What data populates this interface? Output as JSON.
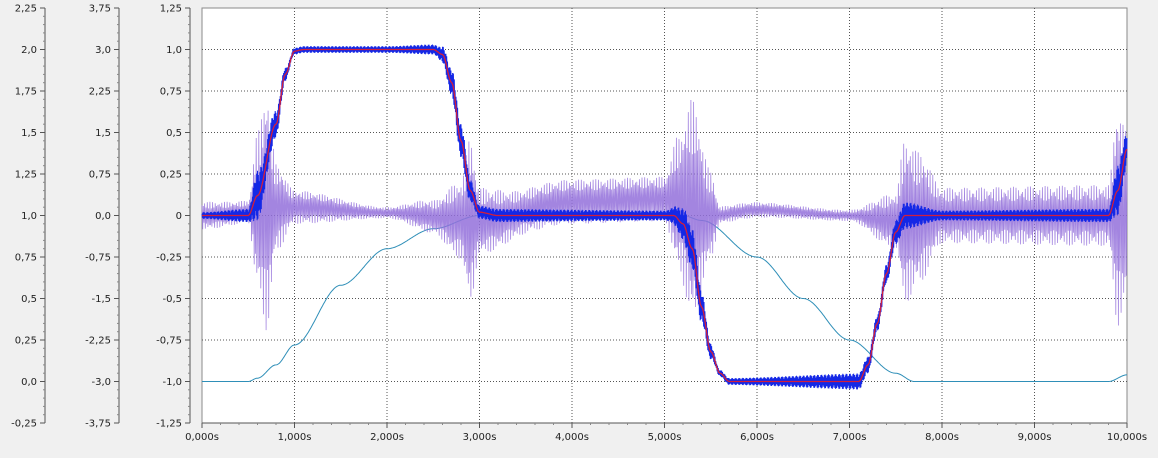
{
  "chart_data": {
    "type": "line",
    "x": {
      "unit": "s",
      "range": [
        0,
        10
      ],
      "tick_labels": [
        "0,000s",
        "1,000s",
        "2,000s",
        "3,000s",
        "4,000s",
        "5,000s",
        "6,000s",
        "7,000s",
        "8,000s",
        "9,000s",
        "10,000s"
      ]
    },
    "y_axes": [
      {
        "id": "axis1",
        "range": [
          -0.25,
          2.25
        ],
        "tick_labels": [
          "2,25",
          "2,0",
          "1,75",
          "1,5",
          "1,25",
          "1,0",
          "0,75",
          "0,5",
          "0,25",
          "0,0",
          "-0,25"
        ]
      },
      {
        "id": "axis2",
        "range": [
          -3.75,
          3.75
        ],
        "tick_labels": [
          "3,75",
          "3,0",
          "2,25",
          "1,5",
          "0,75",
          "0,0",
          "-0,75",
          "-1,5",
          "-2,25",
          "-3,0",
          "-3,75"
        ]
      },
      {
        "id": "axis3",
        "range": [
          -1.25,
          1.25
        ],
        "tick_labels": [
          "1,25",
          "1,0",
          "0,75",
          "0,5",
          "0,25",
          "0",
          "-0,25",
          "-0,5",
          "-0,75",
          "-1,0",
          "-1,25"
        ]
      }
    ],
    "grid": true,
    "legend": "none",
    "series": [
      {
        "color": "#2f8fb8",
        "axis": "axis1",
        "points": [
          [
            0,
            0
          ],
          [
            0.5,
            0
          ],
          [
            0.6,
            0.02
          ],
          [
            0.8,
            0.1
          ],
          [
            1.0,
            0.22
          ],
          [
            1.5,
            0.58
          ],
          [
            2.0,
            0.8
          ],
          [
            2.5,
            0.92
          ],
          [
            3.0,
            1.0
          ],
          [
            5.2,
            1.0
          ],
          [
            5.4,
            0.97
          ],
          [
            6.0,
            0.75
          ],
          [
            6.5,
            0.5
          ],
          [
            7.0,
            0.25
          ],
          [
            7.5,
            0.05
          ],
          [
            7.7,
            0.0
          ],
          [
            9.8,
            0.0
          ],
          [
            10.0,
            0.04
          ]
        ]
      },
      {
        "color": "#9370db",
        "axis": "axis2",
        "baseline": [
          [
            0,
            0
          ],
          [
            1,
            0.15
          ],
          [
            2,
            0.05
          ],
          [
            3,
            -0.1
          ],
          [
            4,
            0.25
          ],
          [
            5,
            0.3
          ],
          [
            5.5,
            0
          ],
          [
            6,
            0.1
          ],
          [
            7,
            0
          ],
          [
            7.5,
            -0.1
          ],
          [
            8,
            0
          ],
          [
            10,
            0
          ]
        ],
        "oscillation_amplitude": [
          [
            0,
            0.25
          ],
          [
            0.5,
            0.2
          ],
          [
            0.6,
            1.4
          ],
          [
            0.7,
            2.2
          ],
          [
            0.8,
            0.8
          ],
          [
            1.0,
            0.3
          ],
          [
            2.0,
            0.1
          ],
          [
            2.5,
            0.3
          ],
          [
            2.8,
            0.7
          ],
          [
            2.9,
            1.5
          ],
          [
            3.0,
            0.6
          ],
          [
            3.5,
            0.4
          ],
          [
            5.0,
            0.4
          ],
          [
            5.15,
            1.2
          ],
          [
            5.3,
            2.0
          ],
          [
            5.5,
            0.8
          ],
          [
            5.6,
            0.15
          ],
          [
            7.0,
            0.1
          ],
          [
            7.5,
            0.5
          ],
          [
            7.6,
            1.5
          ],
          [
            7.75,
            1.2
          ],
          [
            8.0,
            0.5
          ],
          [
            9.8,
            0.55
          ],
          [
            9.9,
            2.0
          ],
          [
            10.0,
            1.5
          ]
        ]
      },
      {
        "color": "#1428e6",
        "axis": "axis3",
        "points": [
          [
            0,
            0
          ],
          [
            0.5,
            0
          ],
          [
            0.6,
            0.12
          ],
          [
            0.8,
            0.55
          ],
          [
            0.9,
            0.85
          ],
          [
            1.0,
            0.99
          ],
          [
            1.1,
            1.0
          ],
          [
            2.5,
            1.0
          ],
          [
            2.6,
            0.97
          ],
          [
            2.7,
            0.8
          ],
          [
            2.8,
            0.45
          ],
          [
            2.9,
            0.15
          ],
          [
            3.0,
            0.02
          ],
          [
            3.2,
            0
          ],
          [
            5.1,
            0
          ],
          [
            5.2,
            -0.05
          ],
          [
            5.3,
            -0.2
          ],
          [
            5.4,
            -0.55
          ],
          [
            5.5,
            -0.82
          ],
          [
            5.6,
            -0.95
          ],
          [
            5.7,
            -1.0
          ],
          [
            7.1,
            -1.0
          ],
          [
            7.2,
            -0.9
          ],
          [
            7.3,
            -0.65
          ],
          [
            7.4,
            -0.35
          ],
          [
            7.5,
            -0.1
          ],
          [
            7.6,
            0
          ],
          [
            7.8,
            0.0
          ],
          [
            9.8,
            0.0
          ],
          [
            9.9,
            0.15
          ],
          [
            10.0,
            0.4
          ]
        ],
        "noise_amplitude": [
          [
            0,
            0.02
          ],
          [
            0.5,
            0.04
          ],
          [
            0.6,
            0.15
          ],
          [
            0.7,
            0.1
          ],
          [
            1.0,
            0.02
          ],
          [
            2.0,
            0.02
          ],
          [
            2.5,
            0.03
          ],
          [
            2.8,
            0.1
          ],
          [
            3.0,
            0.04
          ],
          [
            5.0,
            0.03
          ],
          [
            5.3,
            0.12
          ],
          [
            5.6,
            0.02
          ],
          [
            7.3,
            0.05
          ],
          [
            7.6,
            0.08
          ],
          [
            8.0,
            0.03
          ],
          [
            9.8,
            0.04
          ],
          [
            9.9,
            0.15
          ],
          [
            10.0,
            0.1
          ]
        ]
      },
      {
        "color": "#d21e3c",
        "axis": "axis3",
        "points": [
          [
            0,
            0
          ],
          [
            0.5,
            0
          ],
          [
            0.6,
            0.12
          ],
          [
            0.8,
            0.55
          ],
          [
            0.9,
            0.85
          ],
          [
            1.0,
            0.99
          ],
          [
            1.1,
            1.0
          ],
          [
            2.5,
            1.0
          ],
          [
            2.6,
            0.97
          ],
          [
            2.7,
            0.8
          ],
          [
            2.8,
            0.45
          ],
          [
            2.9,
            0.15
          ],
          [
            3.0,
            0.02
          ],
          [
            3.2,
            0
          ],
          [
            5.1,
            0
          ],
          [
            5.2,
            -0.05
          ],
          [
            5.3,
            -0.2
          ],
          [
            5.4,
            -0.55
          ],
          [
            5.5,
            -0.82
          ],
          [
            5.6,
            -0.95
          ],
          [
            5.7,
            -1.0
          ],
          [
            7.1,
            -1.0
          ],
          [
            7.2,
            -0.9
          ],
          [
            7.3,
            -0.65
          ],
          [
            7.4,
            -0.35
          ],
          [
            7.5,
            -0.1
          ],
          [
            7.6,
            0
          ],
          [
            9.8,
            0
          ],
          [
            9.9,
            0.15
          ],
          [
            10.0,
            0.4
          ]
        ]
      }
    ]
  }
}
